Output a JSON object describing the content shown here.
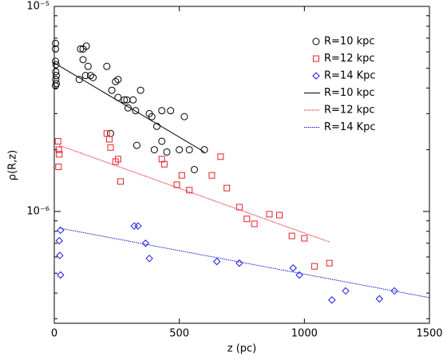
{
  "chart_data": {
    "type": "scatter",
    "x_label": "z (pc)",
    "y_label": "ρ(R,z)",
    "log_y": true,
    "xlim": [
      0,
      1500
    ],
    "xticks": [
      0,
      500,
      1000,
      1500
    ],
    "ylim": [
      2.85e-07,
      1e-05
    ],
    "yticks": [
      {
        "value": 1e-05,
        "label": "10⁻⁵"
      },
      {
        "value": 1e-06,
        "label": "10⁻⁶"
      }
    ],
    "yminorticks": [
      3e-07,
      4e-07,
      5e-07,
      6e-07,
      7e-07,
      8e-07,
      9e-07,
      2e-06,
      3e-06,
      4e-06,
      5e-06,
      6e-06,
      7e-06,
      8e-06,
      9e-06
    ],
    "legend": "top-right",
    "series": [
      {
        "name": "R=10 kpc",
        "color": "#000000",
        "kind": "points",
        "marker": "circle",
        "x": [
          5,
          5,
          5,
          7,
          6,
          8,
          6,
          8,
          5,
          105,
          115,
          128,
          115,
          135,
          125,
          145,
          100,
          155,
          210,
          230,
          245,
          255,
          255,
          280,
          290,
          295,
          315,
          325,
          345,
          225,
          330,
          380,
          390,
          430,
          465,
          410,
          400,
          430,
          450,
          520,
          500,
          540,
          560,
          600
        ],
        "values": [
          6.6e-06,
          6.2e-06,
          5.4e-06,
          5.2e-06,
          4.8e-06,
          4.6e-06,
          4.4e-06,
          4.2e-06,
          4.1e-06,
          6.2e-06,
          6.2e-06,
          6.4e-06,
          5.5e-06,
          5.1e-06,
          4.6e-06,
          4.6e-06,
          4.4e-06,
          4.5e-06,
          5.1e-06,
          3.9e-06,
          4.3e-06,
          4.4e-06,
          3.6e-06,
          3.5e-06,
          3.5e-06,
          3.2e-06,
          3.5e-06,
          3.1e-06,
          3.9e-06,
          2.4e-06,
          2.1e-06,
          3e-06,
          2.9e-06,
          3.1e-06,
          3.1e-06,
          2.6e-06,
          2e-06,
          2.2e-06,
          1.95e-06,
          2.9e-06,
          2e-06,
          2e-06,
          1.6e-06,
          2e-06
        ]
      },
      {
        "name": "R=12 kpc",
        "color": "#e8202a",
        "kind": "points",
        "marker": "square",
        "x": [
          15,
          18,
          20,
          17,
          210,
          220,
          225,
          245,
          255,
          265,
          430,
          440,
          490,
          510,
          540,
          630,
          665,
          690,
          740,
          770,
          800,
          860,
          900,
          950,
          1000,
          1040,
          1100
        ],
        "values": [
          2.2e-06,
          2e-06,
          1.9e-06,
          1.65e-06,
          2.4e-06,
          2.25e-06,
          2.05e-06,
          1.75e-06,
          1.8e-06,
          1.4e-06,
          1.8e-06,
          1.7e-06,
          1.35e-06,
          1.5e-06,
          1.27e-06,
          1.5e-06,
          1.85e-06,
          1.3e-06,
          1.05e-06,
          9.2e-07,
          8.7e-07,
          9.7e-07,
          9.6e-07,
          7.6e-07,
          7.4e-07,
          5.4e-07,
          5.6e-07
        ]
      },
      {
        "name": "R=14 Kpc",
        "color": "#1a1adf",
        "kind": "points",
        "marker": "diamond",
        "x": [
          25,
          20,
          22,
          25,
          320,
          335,
          365,
          380,
          650,
          740,
          955,
          980,
          1110,
          1165,
          1300,
          1360
        ],
        "values": [
          8.1e-07,
          7.2e-07,
          6.1e-07,
          4.9e-07,
          8.5e-07,
          8.5e-07,
          7e-07,
          5.9e-07,
          5.7e-07,
          5.6e-07,
          5.3e-07,
          4.9e-07,
          3.7e-07,
          4.1e-07,
          3.75e-07,
          4.1e-07
        ]
      },
      {
        "name": "R=10 kpc",
        "color": "#000000",
        "kind": "line",
        "line_style": "solid",
        "x": [
          0,
          600
        ],
        "values": [
          5.3e-06,
          1.95e-06
        ]
      },
      {
        "name": "R=12 kpc",
        "color": "#e8202a",
        "kind": "line",
        "line_style": "dotted",
        "x": [
          20,
          1100
        ],
        "values": [
          2.1e-06,
          7.1e-07
        ]
      },
      {
        "name": "R=14 Kpc",
        "color": "#1a1adf",
        "kind": "line",
        "line_style": "dotted",
        "x": [
          20,
          1500
        ],
        "values": [
          8.3e-07,
          3.8e-07
        ]
      }
    ]
  }
}
